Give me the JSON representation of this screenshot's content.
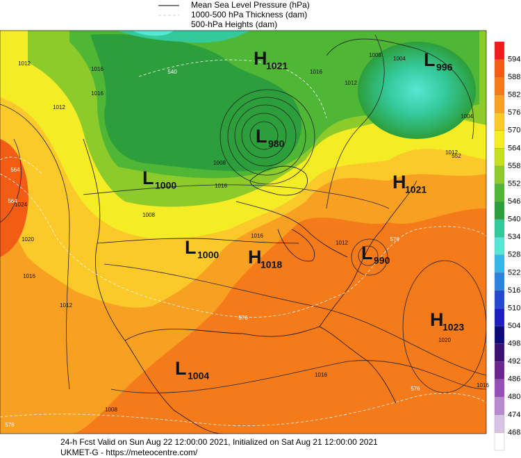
{
  "legend": {
    "items": [
      "Mean Sea Level Pressure (hPa)",
      "1000-500 hPa Thickness (dam)",
      "500-hPa Heights (dam)"
    ]
  },
  "colorbar": {
    "labels": [
      594,
      588,
      582,
      576,
      570,
      564,
      558,
      552,
      546,
      540,
      534,
      528,
      522,
      516,
      510,
      504,
      498,
      492,
      486,
      480,
      474,
      468
    ],
    "colors": [
      "#ee1c1c",
      "#f25c14",
      "#f47a1a",
      "#f8a021",
      "#fbc92a",
      "#f4ec24",
      "#c4e01f",
      "#8ccb2a",
      "#4fb636",
      "#2c9e3b",
      "#34c99a",
      "#57e6d4",
      "#37b5e8",
      "#2d82e0",
      "#2549cf",
      "#1d1fbe",
      "#0b0b7a",
      "#3b1070",
      "#6a2590",
      "#9450b5",
      "#b98ad0",
      "#d9c2e3",
      "#ffffff"
    ]
  },
  "centers": [
    {
      "letter": "L",
      "value": "996"
    },
    {
      "letter": "H",
      "value": "1021"
    },
    {
      "letter": "L",
      "value": "980"
    },
    {
      "letter": "L",
      "value": "1000"
    },
    {
      "letter": "H",
      "value": "1021"
    },
    {
      "letter": "L",
      "value": "1000"
    },
    {
      "letter": "H",
      "value": "1018"
    },
    {
      "letter": "L",
      "value": "990"
    },
    {
      "letter": "H",
      "value": "1023"
    },
    {
      "letter": "L",
      "value": "1004"
    }
  ],
  "contour_labels": [
    "1012",
    "1016",
    "540",
    "1016",
    "1008",
    "1012",
    "1004",
    "1012",
    "1016",
    "564",
    "1024",
    "1020",
    "1016",
    "1012",
    "1008",
    "1016",
    "1016",
    "1012",
    "576",
    "576",
    "1016",
    "1020",
    "1016",
    "576",
    "1008",
    "1012",
    "552",
    "1004",
    "1008",
    "576",
    "564"
  ],
  "footer": {
    "line1": "24-h Fcst Valid on Sun Aug 22 12:00:00 2021, Initialized on Sat Aug 21 12:00:00 2021",
    "line2": "UKMET-G  -  https://meteocentre.com/"
  }
}
